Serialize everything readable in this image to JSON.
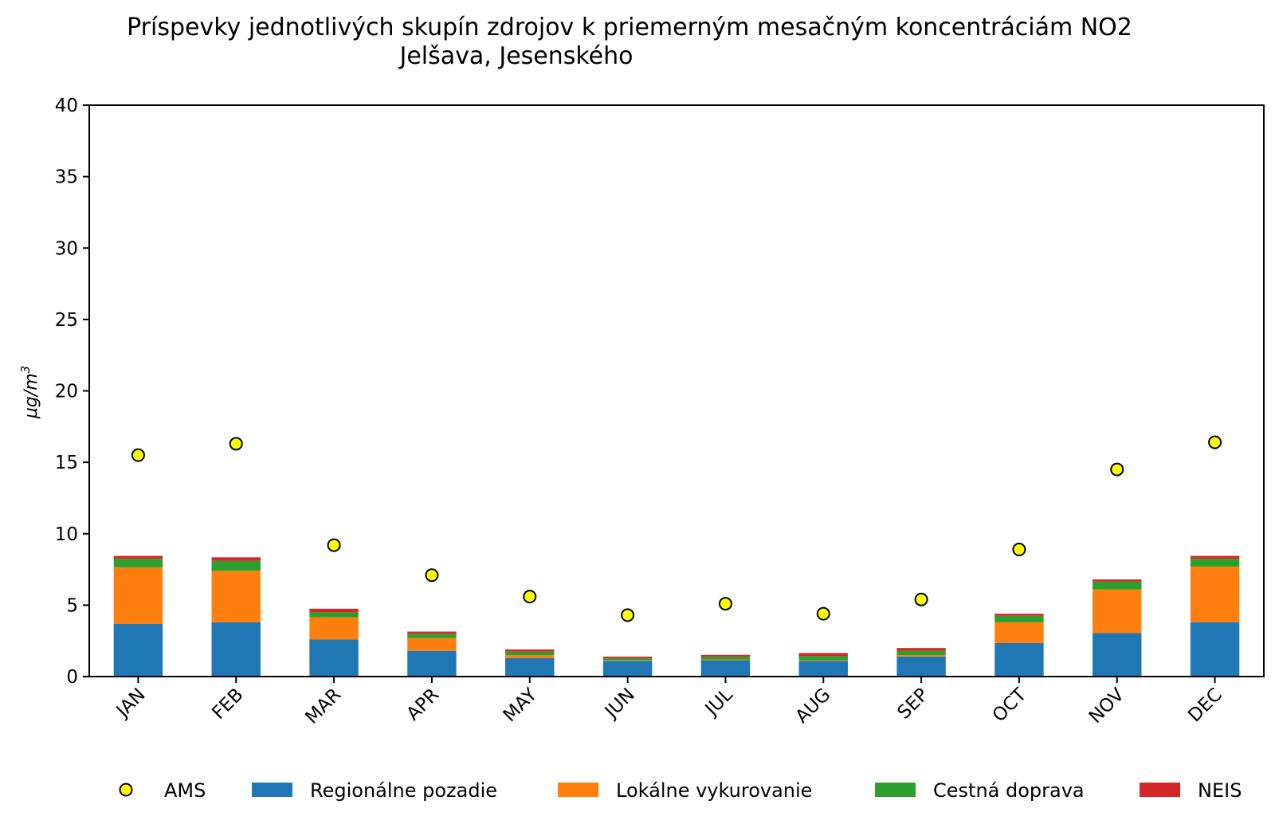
{
  "chart_data": {
    "type": "bar",
    "stacked": true,
    "title": "Príspevky jednotlivých skupín zdrojov k priemerným mesačným koncentráciám NO2",
    "subtitle": "Jelšava, Jesenského",
    "xlabel": "",
    "ylabel": "μg/m",
    "ylabel_superscript": "3",
    "ylim": [
      0,
      40
    ],
    "yticks": [
      0,
      5,
      10,
      15,
      20,
      25,
      30,
      35,
      40
    ],
    "ytick_labels": [
      "0",
      "5",
      "10",
      "15",
      "20",
      "25",
      "30",
      "35",
      "40"
    ],
    "categories": [
      "JAN",
      "FEB",
      "MAR",
      "APR",
      "MAY",
      "JUN",
      "JUL",
      "AUG",
      "SEP",
      "OCT",
      "NOV",
      "DEC"
    ],
    "series": [
      {
        "name": "Regionálne pozadie",
        "color": "#1f77b4",
        "values": [
          3.7,
          3.8,
          2.6,
          1.8,
          1.3,
          1.1,
          1.15,
          1.1,
          1.4,
          2.35,
          3.05,
          3.8
        ]
      },
      {
        "name": "Lokálne vykurovanie",
        "color": "#ff7f0e",
        "values": [
          3.95,
          3.6,
          1.55,
          0.9,
          0.2,
          0.05,
          0.05,
          0.05,
          0.1,
          1.45,
          3.05,
          3.9
        ]
      },
      {
        "name": "Cestná doprava",
        "color": "#2ca02c",
        "values": [
          0.6,
          0.7,
          0.35,
          0.3,
          0.25,
          0.15,
          0.2,
          0.3,
          0.3,
          0.45,
          0.55,
          0.55
        ]
      },
      {
        "name": "NEIS",
        "color": "#d62728",
        "values": [
          0.2,
          0.25,
          0.25,
          0.15,
          0.15,
          0.1,
          0.12,
          0.2,
          0.2,
          0.15,
          0.15,
          0.2
        ]
      }
    ],
    "points": {
      "name": "AMS",
      "color": "#ffff00",
      "values": [
        15.5,
        16.3,
        9.2,
        7.1,
        5.6,
        4.3,
        5.1,
        4.4,
        5.4,
        8.9,
        14.5,
        16.4
      ]
    },
    "legend": {
      "position": "bottom",
      "entries": [
        "AMS",
        "Regionálne pozadie",
        "Lokálne vykurovanie",
        "Cestná doprava",
        "NEIS"
      ]
    },
    "grid": false
  }
}
